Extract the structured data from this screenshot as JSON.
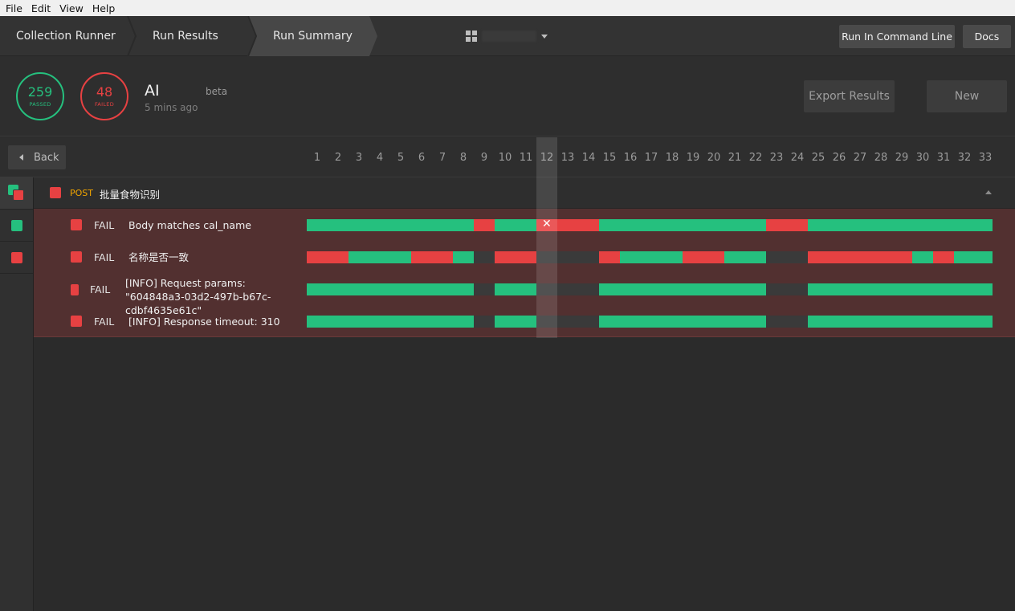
{
  "menu": [
    "File",
    "Edit",
    "View",
    "Help"
  ],
  "nav": {
    "crumbs": [
      "Collection Runner",
      "Run Results",
      "Run Summary"
    ],
    "workspace_icon": "grid-icon",
    "run_cli_label": "Run In Command Line",
    "docs_label": "Docs"
  },
  "summary": {
    "passed_count": "259",
    "passed_label": "PASSED",
    "failed_count": "48",
    "failed_label": "FAILED",
    "run_name": "AI",
    "run_time": "5 mins ago",
    "environment": "beta",
    "export_label": "Export Results",
    "new_label": "New"
  },
  "colors": {
    "pass": "#25c07e",
    "fail": "#e74142",
    "skip": "#3a3a3a",
    "method": "#f0a400"
  },
  "iterations": {
    "back_label": "Back",
    "numbers": [
      "1",
      "2",
      "3",
      "4",
      "5",
      "6",
      "7",
      "8",
      "9",
      "10",
      "11",
      "12",
      "13",
      "14",
      "15",
      "16",
      "17",
      "18",
      "19",
      "20",
      "21",
      "22",
      "23",
      "24",
      "25",
      "26",
      "27",
      "28",
      "29",
      "30",
      "31",
      "32",
      "33"
    ],
    "selected": "12"
  },
  "request": {
    "method": "POST",
    "name": "批量食物识别"
  },
  "tests": [
    {
      "status": "FAIL",
      "name": "Body matches cal_name",
      "results": [
        "p",
        "p",
        "p",
        "p",
        "p",
        "p",
        "p",
        "p",
        "f",
        "p",
        "p",
        "fx",
        "f",
        "f",
        "p",
        "p",
        "p",
        "p",
        "p",
        "p",
        "p",
        "p",
        "f",
        "f",
        "p",
        "p",
        "p",
        "p",
        "p",
        "p",
        "p",
        "p",
        "p"
      ]
    },
    {
      "status": "FAIL",
      "name": "名称是否一致",
      "results": [
        "f",
        "f",
        "p",
        "p",
        "p",
        "f",
        "f",
        "p",
        "s",
        "f",
        "f",
        "s",
        "s",
        "s",
        "f",
        "p",
        "p",
        "p",
        "f",
        "f",
        "p",
        "p",
        "s",
        "s",
        "f",
        "f",
        "f",
        "f",
        "f",
        "p",
        "f",
        "p",
        "p"
      ]
    },
    {
      "status": "FAIL",
      "name": "[INFO] Request params: \"604848a3-03d2-497b-b67c-cdbf4635e61c\"",
      "results": [
        "p",
        "p",
        "p",
        "p",
        "p",
        "p",
        "p",
        "p",
        "s",
        "p",
        "p",
        "s",
        "s",
        "s",
        "p",
        "p",
        "p",
        "p",
        "p",
        "p",
        "p",
        "p",
        "s",
        "s",
        "p",
        "p",
        "p",
        "p",
        "p",
        "p",
        "p",
        "p",
        "p"
      ]
    },
    {
      "status": "FAIL",
      "name": "[INFO] Response timeout: 310",
      "results": [
        "p",
        "p",
        "p",
        "p",
        "p",
        "p",
        "p",
        "p",
        "s",
        "p",
        "p",
        "s",
        "s",
        "s",
        "p",
        "p",
        "p",
        "p",
        "p",
        "p",
        "p",
        "p",
        "s",
        "s",
        "p",
        "p",
        "p",
        "p",
        "p",
        "p",
        "p",
        "p",
        "p"
      ]
    }
  ],
  "rail": [
    "mixed",
    "pass",
    "fail"
  ]
}
